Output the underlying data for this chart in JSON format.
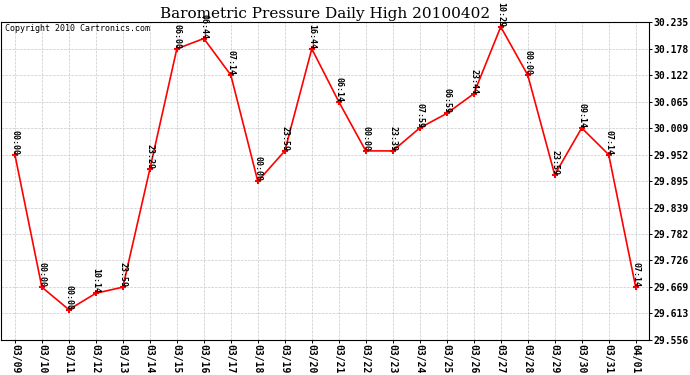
{
  "title": "Barometric Pressure Daily High 20100402",
  "copyright": "Copyright 2010 Cartronics.com",
  "x_labels": [
    "03/09",
    "03/10",
    "03/11",
    "03/12",
    "03/13",
    "03/14",
    "03/15",
    "03/16",
    "03/17",
    "03/18",
    "03/19",
    "03/20",
    "03/21",
    "03/22",
    "03/23",
    "03/24",
    "03/25",
    "03/26",
    "03/27",
    "03/28",
    "03/29",
    "03/30",
    "03/31",
    "04/01"
  ],
  "y_values": [
    29.952,
    29.669,
    29.621,
    29.656,
    29.669,
    29.921,
    30.178,
    30.2,
    30.122,
    29.895,
    29.96,
    30.178,
    30.065,
    29.96,
    29.96,
    30.009,
    30.04,
    30.082,
    30.225,
    30.122,
    29.909,
    30.009,
    29.952,
    29.669
  ],
  "time_labels": [
    "00:00",
    "00:00",
    "00:00",
    "10:14",
    "23:59",
    "23:29",
    "06:00",
    "06:44",
    "07:14",
    "00:00",
    "23:59",
    "16:44",
    "06:14",
    "00:00",
    "23:39",
    "07:59",
    "06:59",
    "23:44",
    "10:29",
    "00:00",
    "23:59",
    "09:14",
    "07:14",
    "07:14"
  ],
  "y_ticks": [
    29.556,
    29.613,
    29.669,
    29.726,
    29.782,
    29.839,
    29.895,
    29.952,
    30.009,
    30.065,
    30.122,
    30.178,
    30.235
  ],
  "y_min": 29.556,
  "y_max": 30.235,
  "line_color": "#ff0000",
  "marker_color": "#ff0000",
  "bg_color": "#ffffff",
  "grid_color": "#c8c8c8",
  "title_fontsize": 11,
  "copyright_fontsize": 6,
  "tick_fontsize": 7,
  "label_fontsize": 6
}
